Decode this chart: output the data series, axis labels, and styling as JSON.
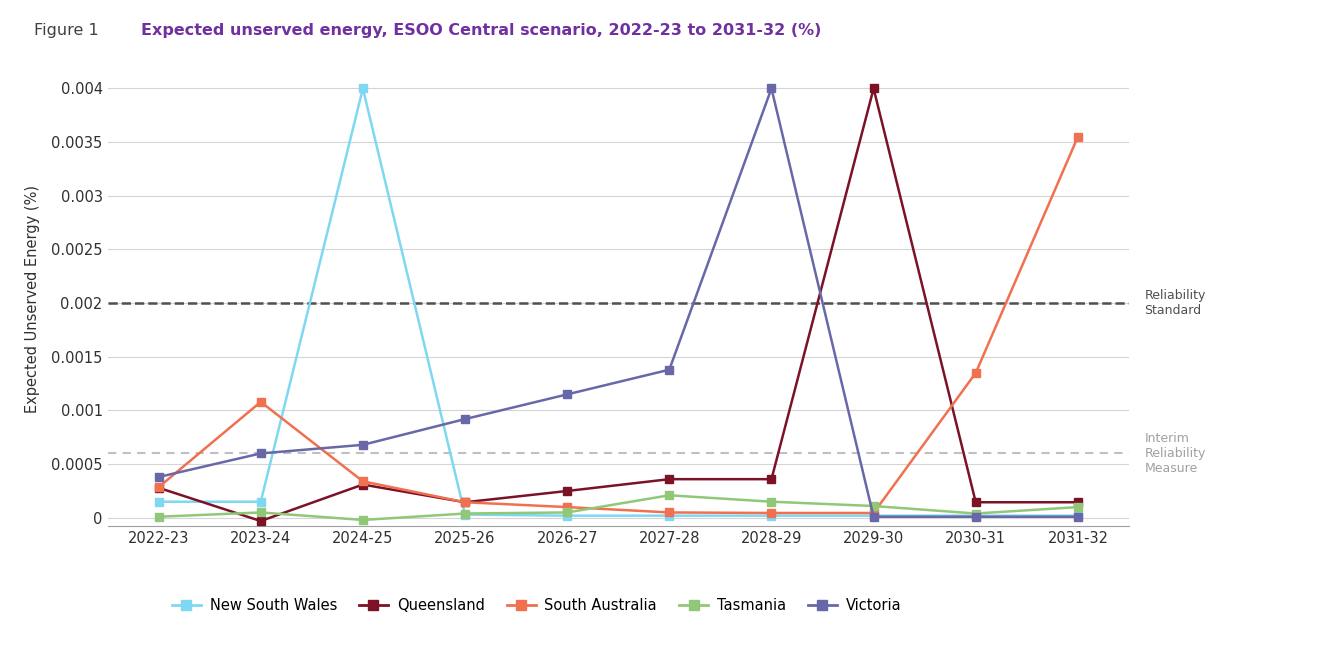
{
  "title_prefix": "Figure 1",
  "title_main": "Expected unserved energy, ESOO Central scenario, 2022-23 to 2031-32 (%)",
  "ylabel": "Expected Unserved Energy (%)",
  "x_labels": [
    "2022-23",
    "2023-24",
    "2024-25",
    "2025-26",
    "2026-27",
    "2027-28",
    "2028-29",
    "2029-30",
    "2030-31",
    "2031-32"
  ],
  "series": [
    {
      "name": "New South Wales",
      "color": "#7FD8F2",
      "values": [
        0.00015,
        0.00015,
        0.004,
        3e-05,
        2e-05,
        2e-05,
        2e-05,
        2e-05,
        2e-05,
        2e-05
      ]
    },
    {
      "name": "Queensland",
      "color": "#7B1225",
      "values": [
        0.00028,
        -3e-05,
        0.00031,
        0.000145,
        0.00025,
        0.00036,
        0.00036,
        0.004,
        0.000145,
        0.000145
      ]
    },
    {
      "name": "South Australia",
      "color": "#F07050",
      "values": [
        0.000285,
        0.00108,
        0.00034,
        0.000145,
        0.0001,
        5e-05,
        4.5e-05,
        4.5e-05,
        0.00135,
        0.00355
      ]
    },
    {
      "name": "Tasmania",
      "color": "#90C878",
      "values": [
        1e-05,
        5e-05,
        -2e-05,
        4e-05,
        5e-05,
        0.00021,
        0.00015,
        0.00011,
        4e-05,
        0.0001
      ]
    },
    {
      "name": "Victoria",
      "color": "#6868A8",
      "values": [
        0.00038,
        0.0006,
        0.00068,
        0.00092,
        0.00115,
        0.00138,
        0.004,
        1e-05,
        1e-05,
        1e-05
      ]
    }
  ],
  "reliability_standard": 0.002,
  "interim_reliability_measure": 0.0006,
  "ylim": [
    -8e-05,
    0.00415
  ],
  "yticks": [
    0,
    0.0005,
    0.001,
    0.0015,
    0.002,
    0.0025,
    0.003,
    0.0035,
    0.004
  ],
  "ytick_labels": [
    "0",
    "0.0005",
    "0.001",
    "0.0015",
    "0.002",
    "0.0025",
    "0.003",
    "0.0035",
    "0.004"
  ],
  "background_color": "#FFFFFF",
  "grid_color": "#D5D5D5",
  "title_color": "#7030A0",
  "prefix_color": "#404040",
  "reliability_label": "Reliability\nStandard",
  "interim_label": "Interim\nReliability\nMeasure"
}
